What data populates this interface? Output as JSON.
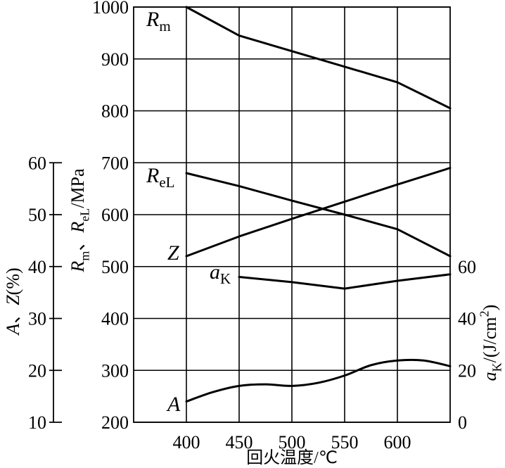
{
  "chart_data": {
    "type": "line",
    "xlabel": "回火温度/℃",
    "xlim": [
      350,
      650
    ],
    "x_ticks": [
      400,
      450,
      500,
      550,
      600
    ],
    "grid": true,
    "y_axes": [
      {
        "label": [
          {
            "text": "R",
            "italic": true
          },
          {
            "text": "m",
            "sub": true
          },
          {
            "text": "、"
          },
          {
            "text": "R",
            "italic": true
          },
          {
            "text": "eL",
            "sub": true
          },
          {
            "text": "/MPa"
          }
        ],
        "ylim": [
          200,
          1000
        ],
        "ticks": [
          1000,
          900,
          800,
          700,
          600,
          500,
          400,
          300,
          200
        ],
        "series": [
          {
            "name": "R",
            "name_sub": "m",
            "points": [
              [
                400,
                1000
              ],
              [
                450,
                945
              ],
              [
                500,
                915
              ],
              [
                550,
                885
              ],
              [
                600,
                855
              ],
              [
                650,
                805
              ]
            ]
          },
          {
            "name": "R",
            "name_sub": "eL",
            "points": [
              [
                400,
                680
              ],
              [
                450,
                655
              ],
              [
                500,
                627
              ],
              [
                550,
                600
              ],
              [
                600,
                572
              ],
              [
                650,
                520
              ]
            ]
          }
        ]
      },
      {
        "label": [
          {
            "text": "A",
            "italic": true
          },
          {
            "text": "、"
          },
          {
            "text": "Z",
            "italic": true
          },
          {
            "text": "(%)"
          }
        ],
        "ylim": [
          10,
          60
        ],
        "ticks": [
          60,
          50,
          40,
          30,
          20,
          10
        ],
        "series": [
          {
            "name": "Z",
            "points": [
              [
                400,
                42
              ],
              [
                450,
                45.8
              ],
              [
                500,
                49.2
              ],
              [
                550,
                52.5
              ],
              [
                600,
                55.8
              ],
              [
                650,
                59
              ]
            ]
          },
          {
            "name": "A",
            "points": [
              [
                400,
                14
              ],
              [
                425,
                15.8
              ],
              [
                450,
                17
              ],
              [
                475,
                17.3
              ],
              [
                500,
                17
              ],
              [
                525,
                17.6
              ],
              [
                550,
                19
              ],
              [
                575,
                21
              ],
              [
                600,
                21.9
              ],
              [
                625,
                21.9
              ],
              [
                650,
                20.8
              ]
            ]
          }
        ]
      },
      {
        "label": [
          {
            "text": "a",
            "italic": true
          },
          {
            "text": "K",
            "sub": true
          },
          {
            "text": "/(J/cm"
          },
          {
            "text": "2",
            "sup": true
          },
          {
            "text": ")"
          }
        ],
        "ylim": [
          0,
          60
        ],
        "ticks": [
          60,
          40,
          20,
          0
        ],
        "series": [
          {
            "name": "a",
            "name_sub": "K",
            "points": [
              [
                450,
                56
              ],
              [
                500,
                54
              ],
              [
                550,
                51.5
              ],
              [
                600,
                54.5
              ],
              [
                650,
                57
              ]
            ]
          }
        ]
      }
    ]
  }
}
